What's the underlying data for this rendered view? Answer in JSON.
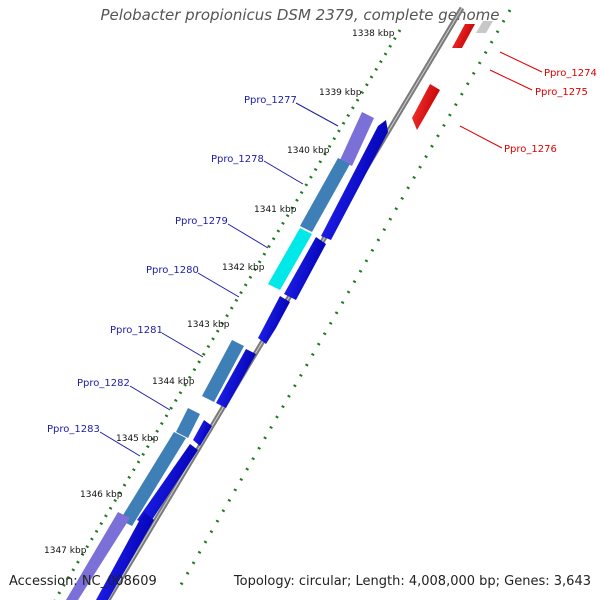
{
  "title": "Pelobacter propionicus DSM 2379, complete genome",
  "footer": {
    "accession": "Accession: NC_008609",
    "topology": "Topology: circular; Length: 4,008,000 bp; Genes: 3,643"
  },
  "ticks": [
    "1338 kbp",
    "1339 kbp",
    "1340 kbp",
    "1341 kbp",
    "1342 kbp",
    "1343 kbp",
    "1344 kbp",
    "1345 kbp",
    "1346 kbp",
    "1347 kbp"
  ],
  "genes_left": [
    "Ppro_1277",
    "Ppro_1278",
    "Ppro_1279",
    "Ppro_1280",
    "Ppro_1281",
    "Ppro_1282",
    "Ppro_1283"
  ],
  "genes_right": [
    "Ppro_1274",
    "Ppro_1275",
    "Ppro_1276"
  ],
  "colors": {
    "forward_gene": "#0000dd",
    "reverse_gene": "#dd0000",
    "left_label": "#1c1ca8",
    "right_label": "#dd0000",
    "tick_dots": "#1e7a1e",
    "backbone": "#7a7a7a"
  }
}
